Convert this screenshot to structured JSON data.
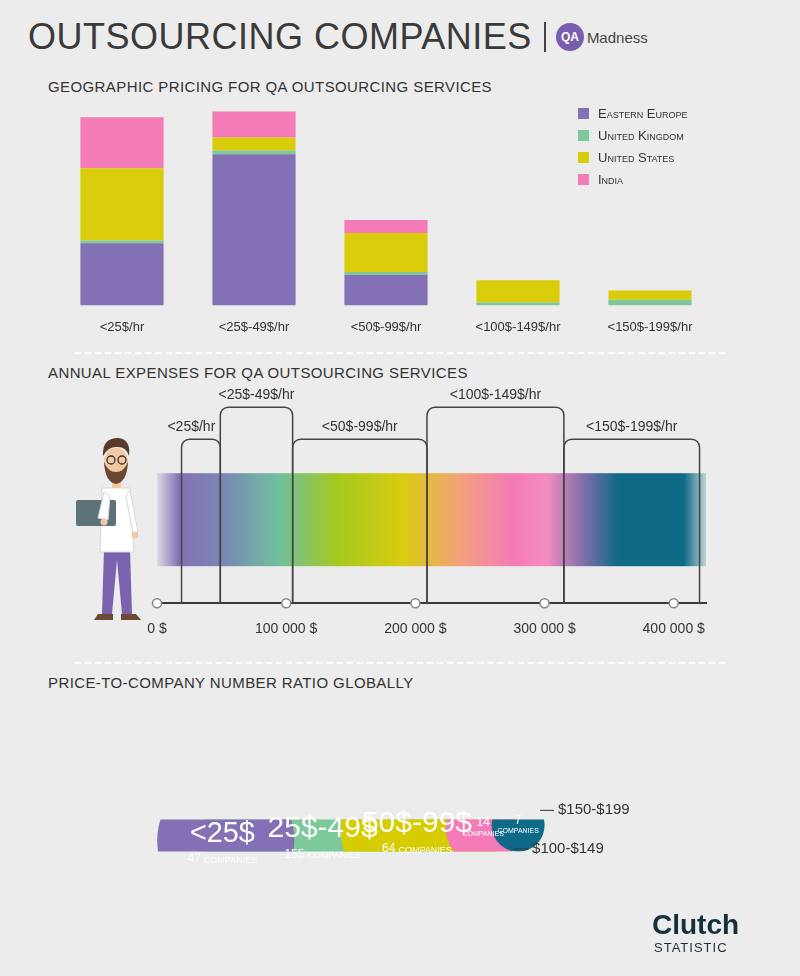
{
  "header": {
    "title": "OUTSOURCING COMPANIES",
    "logo": {
      "mark": "QA",
      "name": "Madness"
    }
  },
  "chart_data": [
    {
      "type": "bar",
      "title": "GEOGRAPHIC PRICING FOR QA OUTSOURCING SERVICES",
      "categories": [
        "<25$/hr",
        "<25$-49$/hr",
        "<50$-99$/hr",
        "<100$-149$/hr",
        "<150$-199$/hr"
      ],
      "series": [
        {
          "name": "Eastern Europe",
          "color": "#8470b5",
          "values": [
            67,
            163,
            33,
            0,
            0
          ]
        },
        {
          "name": "United Kingdom",
          "color": "#7dc99a",
          "values": [
            3,
            4,
            3,
            3,
            6
          ]
        },
        {
          "name": "United States",
          "color": "#d9cc0a",
          "values": [
            78,
            14,
            42,
            24,
            10
          ]
        },
        {
          "name": "India",
          "color": "#f57ab8",
          "values": [
            55,
            28,
            14,
            0,
            0
          ]
        }
      ],
      "stacked": true,
      "ylim": [
        0,
        215
      ],
      "tick_labels": "x",
      "grid": false,
      "legend": "upper right"
    },
    {
      "type": "range",
      "title": "ANNUAL EXPENSES FOR QA OUTSOURCING SERVICES",
      "categories": [
        "<25$/hr",
        "<25$-49$/hr",
        "<50$-99$/hr",
        "<100$-149$/hr",
        "<150$-199$/hr"
      ],
      "ranges": [
        [
          19000,
          49000
        ],
        [
          49000,
          105000
        ],
        [
          105000,
          209000
        ],
        [
          209000,
          315000
        ],
        [
          315000,
          420000
        ]
      ],
      "xlim": [
        0,
        425000
      ],
      "xticks": [
        {
          "value": 0,
          "label": "0 $"
        },
        {
          "value": 100000,
          "label": "100 000 $"
        },
        {
          "value": 200000,
          "label": "200 000 $"
        },
        {
          "value": 300000,
          "label": "300 000 $"
        },
        {
          "value": 400000,
          "label": "400 000 $"
        }
      ],
      "tick_labels": "x",
      "grid": false
    },
    {
      "type": "bubble",
      "title": "PRICE-TO-COMPANY NUMBER RATIO GLOBALLY",
      "categories": [
        "<25$",
        "25$-49$",
        "50$-99$",
        "$100-$149",
        "$150-$199"
      ],
      "values": [
        47,
        155,
        64,
        14,
        7
      ],
      "value_labels": [
        "47 COMPANIES",
        "155 COMPANIES",
        "64 COMPANIES",
        "14 COMPANIES",
        "7 COMPANIES"
      ],
      "colors": [
        "#8470b5",
        "#7dc99a",
        "#d6cc00",
        "#f57ab8",
        "#0e6a87"
      ],
      "data_labels": true
    }
  ],
  "footer": {
    "brand": "Clutch",
    "label": "STATISTIC"
  }
}
